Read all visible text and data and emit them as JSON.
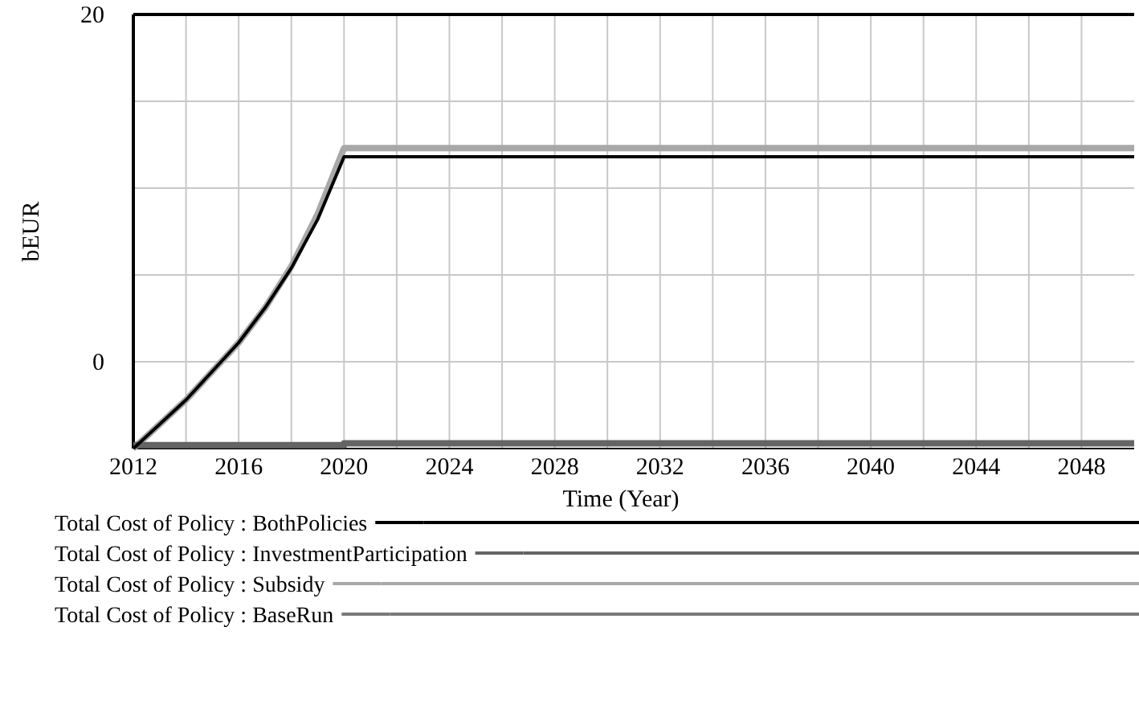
{
  "chart_data": {
    "type": "line",
    "xlabel": "Time (Year)",
    "ylabel": "bEUR",
    "xlim": [
      2012,
      2050
    ],
    "xticks": [
      2012,
      {
        "value": 2014,
        "label": null
      },
      2016,
      {
        "value": 2018,
        "label": null
      },
      2020,
      {
        "value": 2022,
        "label": null
      },
      2024,
      {
        "value": 2026,
        "label": null
      },
      2028,
      {
        "value": 2030,
        "label": null
      },
      2032,
      {
        "value": 2034,
        "label": null
      },
      2036,
      {
        "value": 2038,
        "label": null
      },
      2040,
      {
        "value": 2042,
        "label": null
      },
      2044,
      {
        "value": 2046,
        "label": null
      },
      2048
    ],
    "ylim": [
      -5,
      20
    ],
    "yticks": [
      {
        "value": -5,
        "label": null
      },
      0,
      {
        "value": 5,
        "label": null
      },
      {
        "value": 10,
        "label": null
      },
      {
        "value": 15,
        "label": null
      },
      20
    ],
    "grid": true,
    "legend": "bottom",
    "line_style": "solid",
    "series": [
      {
        "name": "Total Cost of Policy : BothPolicies",
        "color": "#000000",
        "x": [
          2012,
          2014,
          2016,
          2017,
          2018,
          2019,
          2020,
          2050
        ],
        "values": [
          -5,
          -2.2,
          1.1,
          3.1,
          5.4,
          8.2,
          11.8,
          11.8
        ]
      },
      {
        "name": "Total Cost of Policy : InvestmentParticipation",
        "color": "#646464",
        "x": [
          2012,
          2020,
          2020,
          2050
        ],
        "values": [
          -4.8,
          -4.8,
          -4.7,
          -4.7
        ]
      },
      {
        "name": "Total Cost of Policy : Subsidy",
        "color": "#a8a8a8",
        "x": [
          2012,
          2014,
          2016,
          2017,
          2018,
          2019,
          2020,
          2050
        ],
        "values": [
          -5,
          -2.2,
          1.1,
          3.1,
          5.5,
          8.5,
          12.3,
          12.3
        ]
      },
      {
        "name": "Total Cost of Policy : BaseRun",
        "color": "#7a7a7a"
      }
    ]
  }
}
